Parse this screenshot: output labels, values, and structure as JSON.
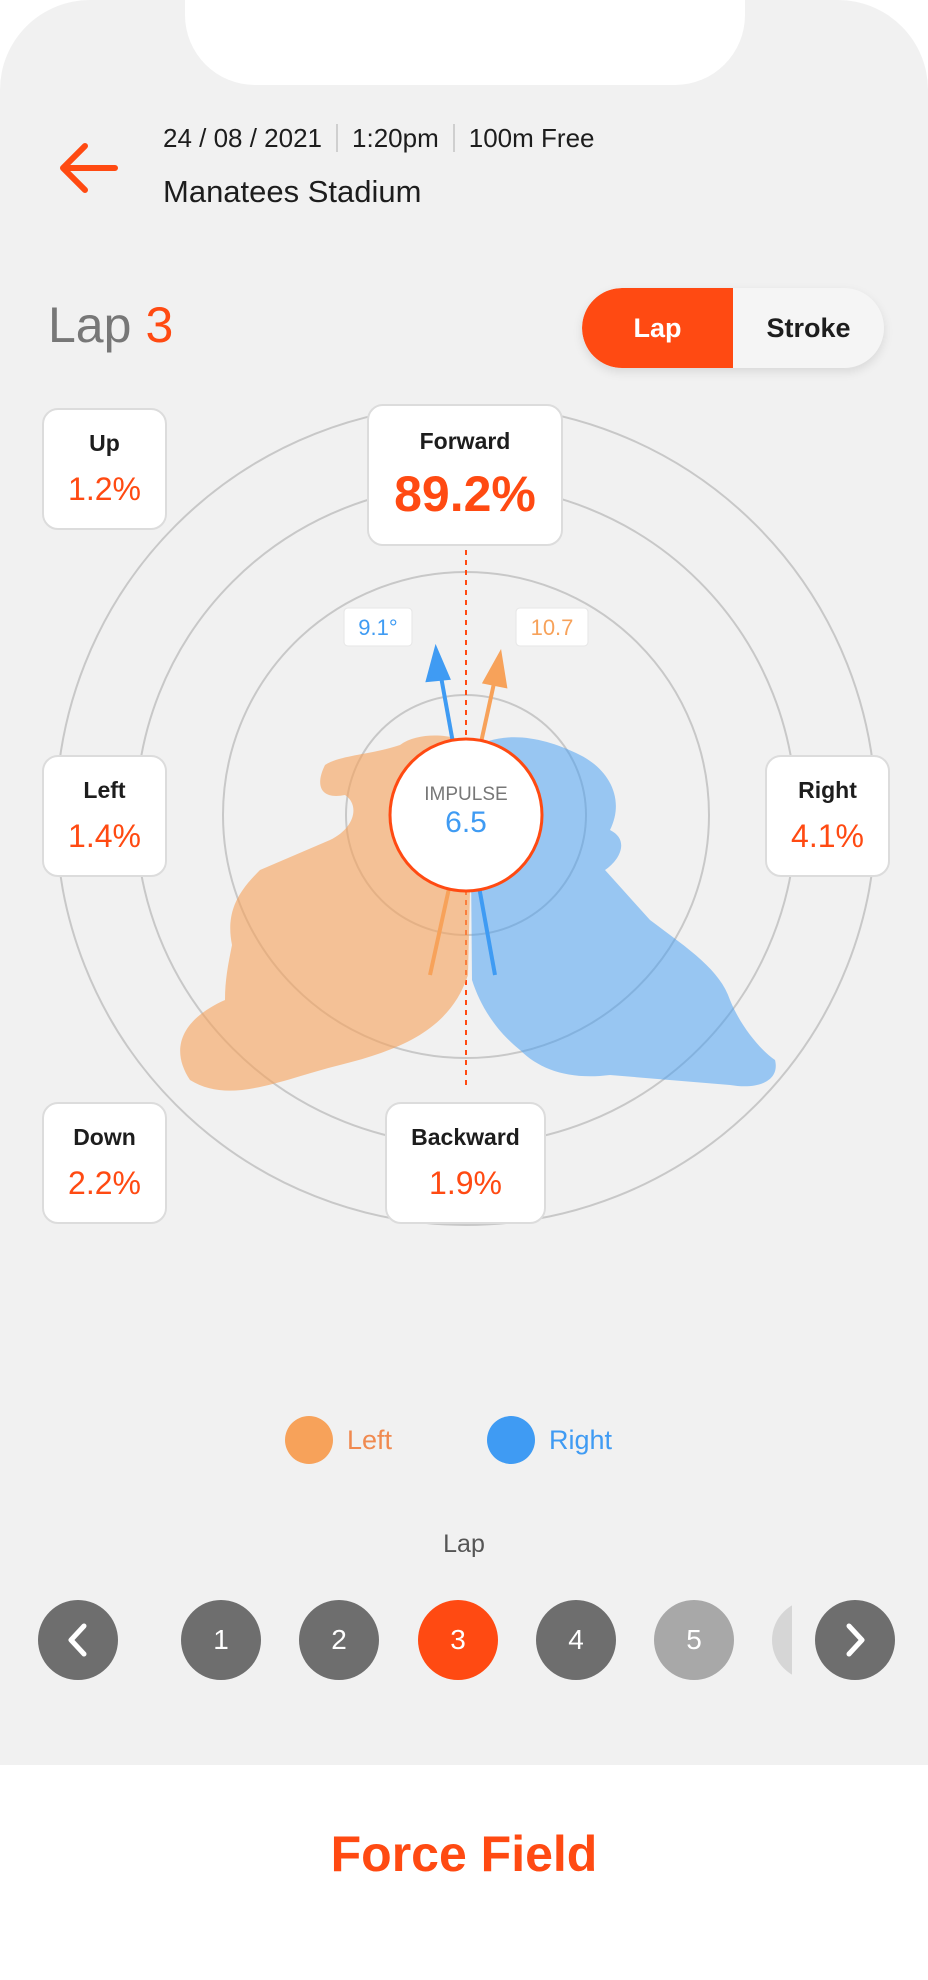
{
  "header": {
    "date": "24 / 08 / 2021",
    "time": "1:20pm",
    "event": "100m Free",
    "venue": "Manatees Stadium"
  },
  "lap_title": {
    "label": "Lap",
    "number": "3"
  },
  "toggle": {
    "lap_label": "Lap",
    "stroke_label": "Stroke",
    "active": "Lap"
  },
  "force": {
    "up": {
      "label": "Up",
      "value": "1.2%"
    },
    "forward": {
      "label": "Forward",
      "value": "89.2%"
    },
    "left": {
      "label": "Left",
      "value": "1.4%"
    },
    "right": {
      "label": "Right",
      "value": "4.1%"
    },
    "down": {
      "label": "Down",
      "value": "2.2%"
    },
    "backward": {
      "label": "Backward",
      "value": "1.9%"
    }
  },
  "impulse": {
    "label": "IMPULSE",
    "value": "6.5"
  },
  "angles": {
    "right_hand": "9.1°",
    "left_hand": "10.7"
  },
  "legend": {
    "left": "Left",
    "right": "Right"
  },
  "colors": {
    "accent": "#ff4a12",
    "left_hand": "#f7a25a",
    "right_hand": "#3f9bf3"
  },
  "pager": {
    "caption": "Lap",
    "laps": [
      "1",
      "2",
      "3",
      "4",
      "5"
    ],
    "current": "3"
  },
  "footer": {
    "title": "Force Field"
  }
}
